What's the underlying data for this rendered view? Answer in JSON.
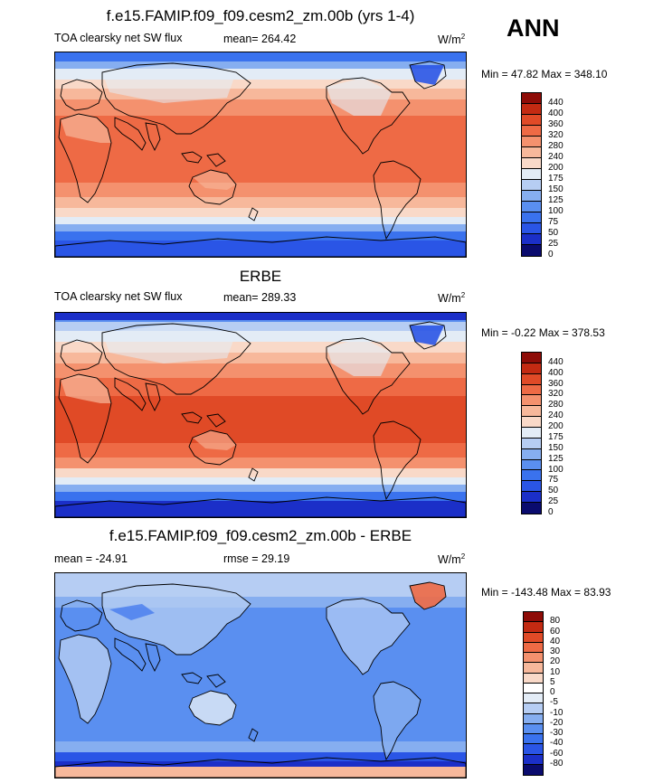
{
  "season": "ANN",
  "colors": {
    "abs_scale": [
      "#0a0b6e",
      "#1b2fc8",
      "#2a55e6",
      "#3a72ee",
      "#5a8ff0",
      "#86aef0",
      "#b6cdf3",
      "#e3ecf6",
      "#f9d9c8",
      "#f7b89b",
      "#f4916e",
      "#ee6a45",
      "#e04a27",
      "#c32a12",
      "#8e0c07"
    ],
    "diff_scale": [
      "#0a0b6e",
      "#1b2fc8",
      "#2a55e6",
      "#3a72ee",
      "#5a8ff0",
      "#86aef0",
      "#b6cdf3",
      "#e3ecf6",
      "#ffffff",
      "#f9d9c8",
      "#f7b89b",
      "#f4916e",
      "#ee6a45",
      "#e04a27",
      "#c32a12",
      "#8e0c07"
    ]
  },
  "panels": [
    {
      "title": "f.e15.FAMIP.f09_f09.cesm2_zm.00b (yrs 1-4)",
      "left_label": "TOA clearsky net SW flux",
      "center_label": "mean= 264.42",
      "units": "W/m",
      "units_exp": "2",
      "minmax": "Min =  47.82 Max = 348.10",
      "colorbar_labels": [
        "440",
        "400",
        "360",
        "320",
        "280",
        "240",
        "200",
        "175",
        "150",
        "125",
        "100",
        "75",
        "50",
        "25",
        "0"
      ],
      "map_kind": "model"
    },
    {
      "title": "ERBE",
      "left_label": "TOA clearsky net SW flux",
      "center_label": "mean= 289.33",
      "units": "W/m",
      "units_exp": "2",
      "minmax": "Min =  -0.22 Max = 378.53",
      "colorbar_labels": [
        "440",
        "400",
        "360",
        "320",
        "280",
        "240",
        "200",
        "175",
        "150",
        "125",
        "100",
        "75",
        "50",
        "25",
        "0"
      ],
      "map_kind": "obs"
    },
    {
      "title": "f.e15.FAMIP.f09_f09.cesm2_zm.00b - ERBE",
      "left_label": "mean = -24.91",
      "center_label": "rmse =  29.19",
      "units": "W/m",
      "units_exp": "2",
      "minmax": "Min = -143.48 Max =  83.93",
      "colorbar_labels": [
        "80",
        "60",
        "40",
        "30",
        "20",
        "10",
        "5",
        "0",
        "-5",
        "-10",
        "-20",
        "-30",
        "-40",
        "-60",
        "-80"
      ],
      "map_kind": "diff"
    }
  ]
}
